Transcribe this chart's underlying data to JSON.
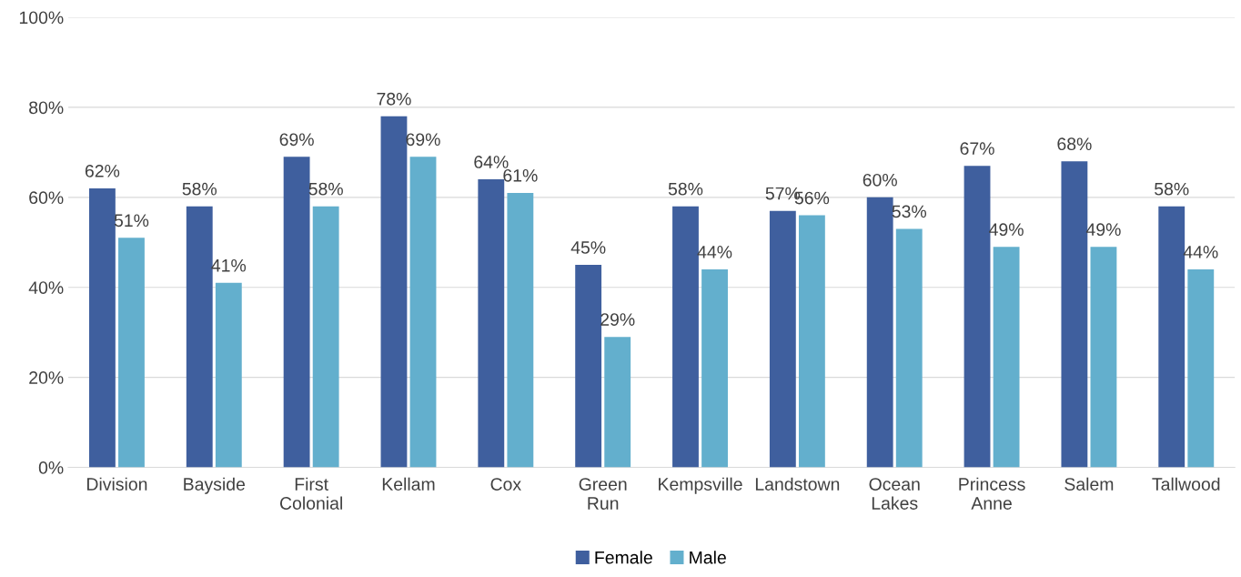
{
  "chart_data": {
    "type": "bar",
    "categories": [
      "Division",
      "Bayside",
      "First Colonial",
      "Kellam",
      "Cox",
      "Green Run",
      "Kempsville",
      "Landstown",
      "Ocean Lakes",
      "Princess Anne",
      "Salem",
      "Tallwood"
    ],
    "series": [
      {
        "name": "Female",
        "color": "#3f5f9e",
        "values": [
          62,
          58,
          69,
          78,
          64,
          45,
          58,
          57,
          60,
          67,
          68,
          58
        ],
        "value_labels": [
          "62%",
          "58%",
          "69%",
          "78%",
          "64%",
          "45%",
          "58%",
          "57%",
          "60%",
          "67%",
          "68%",
          "58%"
        ]
      },
      {
        "name": "Male",
        "color": "#63afcd",
        "values": [
          51,
          41,
          58,
          69,
          61,
          29,
          44,
          56,
          53,
          49,
          49,
          44
        ],
        "value_labels": [
          "51%",
          "41%",
          "58%",
          "69%",
          "61%",
          "29%",
          "44%",
          "56%",
          "53%",
          "49%",
          "49%",
          "44%"
        ]
      }
    ],
    "ylim": [
      0,
      100
    ],
    "yticks": [
      {
        "value": 0,
        "label": "0%"
      },
      {
        "value": 20,
        "label": "20%"
      },
      {
        "value": 40,
        "label": "40%"
      },
      {
        "value": 60,
        "label": "60%"
      },
      {
        "value": 80,
        "label": "80%"
      },
      {
        "value": 100,
        "label": "100%"
      }
    ],
    "grid": "y",
    "legend": "bottom"
  }
}
